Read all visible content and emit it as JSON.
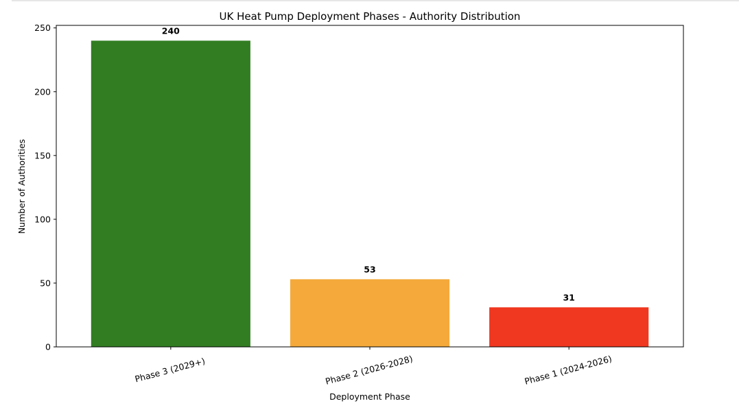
{
  "chart_data": {
    "type": "bar",
    "title": "UK Heat Pump Deployment Phases - Authority Distribution",
    "xlabel": "Deployment Phase",
    "ylabel": "Number of Authorities",
    "categories": [
      "Phase 3 (2029+)",
      "Phase 2 (2026-2028)",
      "Phase 1 (2024-2026)"
    ],
    "values": [
      240,
      53,
      31
    ],
    "data_labels": [
      "240",
      "53",
      "31"
    ],
    "colors": [
      "#327d22",
      "#f5a93a",
      "#f0371f"
    ],
    "ylim": [
      0,
      252
    ],
    "yticks": [
      0,
      50,
      100,
      150,
      200,
      250
    ],
    "ytick_labels": [
      "0",
      "50",
      "100",
      "150",
      "200",
      "250"
    ],
    "grid": false,
    "legend": "none"
  }
}
